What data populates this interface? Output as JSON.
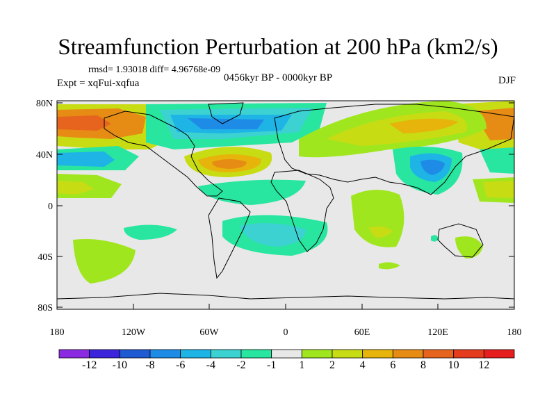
{
  "title": "Streamfunction Perturbation at 200 hPa (km2/s)",
  "stats": "rmsd= 1.93018 diff= 4.96768e-09",
  "experiment": "Expt = xqFui-xqfua",
  "period": "0456kyr BP - 0000kyr BP",
  "season": "DJF",
  "lat_ticks": [
    "80N",
    "40N",
    "0",
    "40S",
    "80S"
  ],
  "lon_ticks": [
    "180",
    "120W",
    "60W",
    "0",
    "60E",
    "120E",
    "180"
  ],
  "colorbar": {
    "labels": [
      "-12",
      "-10",
      "-8",
      "-6",
      "-4",
      "-2",
      "-1",
      "1",
      "2",
      "4",
      "6",
      "8",
      "10",
      "12"
    ],
    "colors": [
      "#8a2be2",
      "#3c23dc",
      "#1e5ad2",
      "#1e8ce6",
      "#1eb4e6",
      "#3cd2d2",
      "#28e6a0",
      "#e8e8e8",
      "#a0e61e",
      "#c8dc14",
      "#e6b40a",
      "#e68c14",
      "#e6641e",
      "#e63c1e",
      "#e61e1e"
    ]
  },
  "map_features": {
    "positive": [
      {
        "name": "north-pacific-high",
        "color": "#e6641e"
      },
      {
        "name": "north-atlantic-high",
        "color": "#e68c14"
      },
      {
        "name": "siberia-high",
        "color": "#e68c14"
      },
      {
        "name": "east-pacific-high",
        "color": "#c8dc14"
      },
      {
        "name": "indian-ocean-high",
        "color": "#c8dc14"
      },
      {
        "name": "south-pacific-high",
        "color": "#a0e61e"
      },
      {
        "name": "australia-high",
        "color": "#a0e61e"
      }
    ],
    "negative": [
      {
        "name": "north-america-low",
        "color": "#1e8ce6"
      },
      {
        "name": "east-asia-low",
        "color": "#1eb4e6"
      },
      {
        "name": "east-pacific-low",
        "color": "#1eb4e6"
      },
      {
        "name": "south-atlantic-low",
        "color": "#1eb4e6"
      },
      {
        "name": "south-pacific-low",
        "color": "#28e6a0"
      }
    ]
  }
}
